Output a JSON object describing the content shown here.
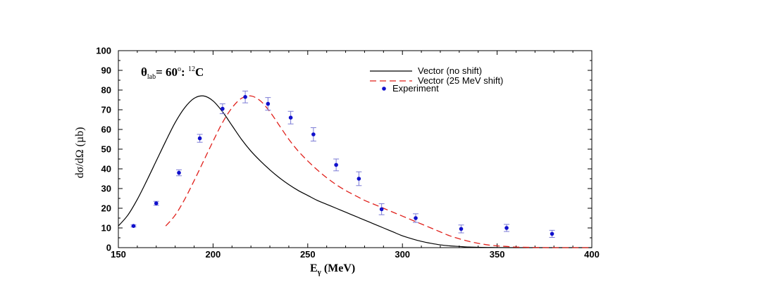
{
  "chart_data": {
    "type": "line",
    "annotation": {
      "theta": "θ",
      "sub": "lab",
      "eq": "= 60",
      "deg": "o",
      "colon": ": ",
      "mass": "12",
      "element": "C"
    },
    "xlabel": {
      "main": "E",
      "sub": "γ",
      "unit": " (MeV)"
    },
    "ylabel": "dσ/dΩ (µb)",
    "xlim": [
      150,
      400
    ],
    "ylim": [
      0,
      100
    ],
    "xticks": [
      150,
      200,
      250,
      300,
      350,
      400
    ],
    "yticks": [
      0,
      10,
      20,
      30,
      40,
      50,
      60,
      70,
      80,
      90,
      100
    ],
    "grid": false,
    "legend_position": "top-right",
    "series": [
      {
        "name": "Vector (no shift)",
        "style": "solid",
        "color": "#000000",
        "x": [
          150,
          155,
          160,
          165,
          170,
          175,
          180,
          185,
          190,
          195,
          200,
          205,
          210,
          215,
          220,
          225,
          230,
          235,
          240,
          245,
          250,
          255,
          260,
          265,
          270,
          275,
          280,
          285,
          290,
          295,
          300,
          305,
          310,
          315,
          320,
          325,
          330,
          335,
          340,
          345,
          350,
          360,
          380,
          400
        ],
        "y": [
          11.0,
          16.5,
          24.5,
          34.0,
          44.0,
          54.0,
          63.5,
          71.0,
          75.8,
          77.0,
          74.5,
          69.0,
          62.0,
          55.0,
          49.0,
          44.0,
          39.5,
          35.5,
          32.0,
          29.0,
          26.5,
          24.0,
          22.0,
          20.0,
          18.0,
          16.0,
          14.0,
          12.0,
          10.0,
          8.0,
          6.0,
          4.5,
          3.2,
          2.2,
          1.4,
          0.9,
          0.6,
          0.3,
          0.2,
          0.1,
          0.05,
          0.0,
          0.0,
          0.0
        ]
      },
      {
        "name": "Vector (25 MeV shift)",
        "style": "dashed",
        "color": "#e0201b",
        "x": [
          175,
          180,
          185,
          190,
          195,
          200,
          205,
          210,
          215,
          220,
          225,
          230,
          235,
          240,
          245,
          250,
          255,
          260,
          265,
          270,
          275,
          280,
          285,
          290,
          295,
          300,
          305,
          310,
          315,
          320,
          325,
          330,
          335,
          340,
          345,
          350,
          355,
          360,
          370,
          380,
          400
        ],
        "y": [
          11.0,
          16.5,
          24.5,
          34.0,
          44.0,
          54.0,
          63.5,
          71.0,
          75.8,
          77.0,
          74.5,
          69.0,
          62.0,
          55.0,
          49.0,
          44.0,
          39.5,
          35.5,
          32.0,
          29.0,
          26.5,
          24.0,
          22.0,
          20.0,
          18.0,
          16.0,
          14.0,
          12.0,
          10.0,
          8.0,
          6.0,
          4.5,
          3.2,
          2.2,
          1.4,
          0.9,
          0.6,
          0.3,
          0.1,
          0.0,
          0.0
        ]
      },
      {
        "name": "Experiment",
        "style": "points",
        "color": "#1010cc",
        "errorbar_color": "#7b7bd6",
        "x": [
          158,
          170,
          182,
          193,
          205,
          217,
          229,
          241,
          253,
          265,
          277,
          289,
          307,
          331,
          355,
          379
        ],
        "y": [
          11.0,
          22.5,
          38.0,
          55.5,
          70.5,
          76.5,
          73.0,
          66.0,
          57.5,
          42.0,
          35.0,
          19.5,
          15.0,
          9.5,
          10.0,
          7.0
        ],
        "err": [
          0.5,
          1.0,
          1.5,
          2.0,
          2.5,
          3.0,
          3.2,
          3.2,
          3.4,
          3.0,
          3.5,
          2.8,
          2.2,
          2.0,
          1.8,
          1.8
        ]
      }
    ]
  }
}
